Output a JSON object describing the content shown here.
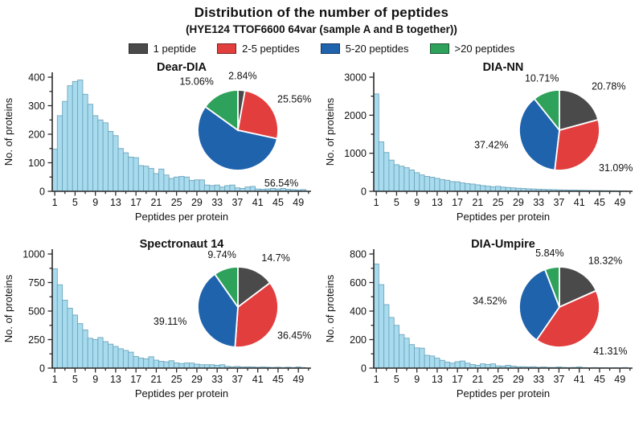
{
  "header": {
    "title": "Distribution of the number of peptides",
    "subtitle": "(HYE124 TTOF6600 64var (sample A and B together))"
  },
  "legend": {
    "position": "top-center",
    "items": [
      {
        "label": "1 peptide",
        "color": "#4a4a4a"
      },
      {
        "label": "2-5 peptides",
        "color": "#e23e3e"
      },
      {
        "label": "5-20 peptides",
        "color": "#2063ad"
      },
      {
        "label": ">20 peptides",
        "color": "#2ea15b"
      }
    ]
  },
  "styles": {
    "bar_fill": "#a8dbee",
    "bar_stroke": "#6fa6bd",
    "axis_color": "#2a2a2a",
    "text_color": "#111111",
    "pie_border": "#ffffff"
  },
  "chart_data": [
    {
      "type": "bar",
      "title": "Dear-DIA",
      "xlabel": "Peptides per protein",
      "ylabel": "No. of proteins",
      "x_range": [
        1,
        50
      ],
      "values": [
        148,
        265,
        315,
        370,
        385,
        390,
        340,
        305,
        265,
        250,
        240,
        210,
        195,
        150,
        135,
        120,
        118,
        90,
        88,
        80,
        62,
        78,
        57,
        45,
        50,
        52,
        50,
        38,
        40,
        40,
        22,
        20,
        22,
        15,
        20,
        22,
        12,
        10,
        15,
        17,
        8,
        7,
        8,
        10,
        8,
        10,
        7,
        6,
        5,
        6
      ],
      "ylim": [
        0,
        400
      ],
      "yticks": [
        0,
        100,
        200,
        300,
        400
      ],
      "y_minor_step": 50,
      "xticks": [
        1,
        5,
        9,
        13,
        17,
        21,
        25,
        29,
        33,
        37,
        41,
        45,
        49
      ],
      "grid": false,
      "pie": {
        "type": "pie",
        "start": "top",
        "clockwise": true,
        "slices": [
          {
            "label": "1 peptide",
            "value": 2.84,
            "text": "2.84%",
            "color": "#4a4a4a"
          },
          {
            "label": "2-5 peptides",
            "value": 25.56,
            "text": "25.56%",
            "color": "#e23e3e"
          },
          {
            "label": "5-20 peptides",
            "value": 56.54,
            "text": "56.54%",
            "color": "#2063ad",
            "label_angle": 152,
            "label_dist": 70
          },
          {
            "label": ">20 peptides",
            "value": 15.06,
            "text": "15.06%",
            "color": "#2ea15b"
          }
        ]
      }
    },
    {
      "type": "bar",
      "title": "DIA-NN",
      "xlabel": "Peptides per protein",
      "ylabel": "No. of proteins",
      "x_range": [
        1,
        50
      ],
      "values": [
        2560,
        1300,
        1020,
        820,
        700,
        660,
        620,
        560,
        490,
        430,
        390,
        370,
        340,
        310,
        290,
        255,
        250,
        220,
        200,
        190,
        170,
        150,
        135,
        120,
        130,
        110,
        100,
        90,
        80,
        72,
        65,
        60,
        55,
        50,
        46,
        42,
        38,
        35,
        32,
        30,
        27,
        25,
        22,
        20,
        20,
        17,
        15,
        14,
        12,
        10
      ],
      "ylim": [
        0,
        3000
      ],
      "yticks": [
        0,
        1000,
        2000,
        3000
      ],
      "y_minor_step": 500,
      "xticks": [
        1,
        5,
        9,
        13,
        17,
        21,
        25,
        29,
        33,
        37,
        41,
        45,
        49
      ],
      "grid": false,
      "pie": {
        "type": "pie",
        "start": "top",
        "clockwise": true,
        "slices": [
          {
            "label": "1 peptide",
            "value": 20.78,
            "text": "20.78%",
            "color": "#4a4a4a"
          },
          {
            "label": "2-5 peptides",
            "value": 31.09,
            "text": "31.09%",
            "color": "#e23e3e"
          },
          {
            "label": "5-20 peptides",
            "value": 37.42,
            "text": "37.42%",
            "color": "#2063ad"
          },
          {
            "label": ">20 peptides",
            "value": 10.71,
            "text": "10.71%",
            "color": "#2ea15b"
          }
        ]
      }
    },
    {
      "type": "bar",
      "title": "Spectronaut 14",
      "xlabel": "Peptides per protein",
      "ylabel": "No. of proteins",
      "x_range": [
        1,
        50
      ],
      "values": [
        870,
        730,
        595,
        525,
        465,
        390,
        335,
        262,
        250,
        268,
        232,
        210,
        190,
        170,
        155,
        140,
        102,
        88,
        82,
        100,
        70,
        60,
        55,
        65,
        46,
        40,
        45,
        44,
        35,
        30,
        30,
        30,
        25,
        30,
        16,
        12,
        15,
        10,
        12,
        10,
        8,
        10,
        8,
        6,
        8,
        5,
        8,
        5,
        10,
        5
      ],
      "ylim": [
        0,
        1000
      ],
      "yticks": [
        0,
        250,
        500,
        750,
        1000
      ],
      "y_minor_step": 125,
      "xticks": [
        1,
        5,
        9,
        13,
        17,
        21,
        25,
        29,
        33,
        37,
        41,
        45,
        49
      ],
      "grid": false,
      "pie": {
        "type": "pie",
        "start": "top",
        "clockwise": true,
        "slices": [
          {
            "label": "1 peptide",
            "value": 14.7,
            "text": "14.7%",
            "color": "#4a4a4a"
          },
          {
            "label": "2-5 peptides",
            "value": 36.45,
            "text": "36.45%",
            "color": "#e23e3e"
          },
          {
            "label": "5-20 peptides",
            "value": 39.11,
            "text": "39.11%",
            "color": "#2063ad"
          },
          {
            "label": ">20 peptides",
            "value": 9.74,
            "text": "9.74%",
            "color": "#2ea15b"
          }
        ]
      }
    },
    {
      "type": "bar",
      "title": "DIA-Umpire",
      "xlabel": "Peptides per protein",
      "ylabel": "No. of proteins",
      "x_range": [
        1,
        50
      ],
      "values": [
        730,
        585,
        445,
        355,
        300,
        235,
        210,
        165,
        142,
        140,
        90,
        85,
        70,
        55,
        42,
        35,
        45,
        50,
        35,
        25,
        20,
        30,
        25,
        30,
        16,
        14,
        20,
        14,
        10,
        10,
        8,
        10,
        6,
        8,
        5,
        5,
        8,
        5,
        4,
        5,
        8,
        4,
        3,
        4,
        3,
        3,
        2,
        3,
        2,
        4
      ],
      "ylim": [
        0,
        800
      ],
      "yticks": [
        0,
        200,
        400,
        600,
        800
      ],
      "y_minor_step": 100,
      "xticks": [
        1,
        5,
        9,
        13,
        17,
        21,
        25,
        29,
        33,
        37,
        41,
        45,
        49
      ],
      "grid": false,
      "pie": {
        "type": "pie",
        "start": "top",
        "clockwise": true,
        "slices": [
          {
            "label": "1 peptide",
            "value": 18.32,
            "text": "18.32%",
            "color": "#4a4a4a"
          },
          {
            "label": "2-5 peptides",
            "value": 41.31,
            "text": "41.31%",
            "color": "#e23e3e"
          },
          {
            "label": "5-20 peptides",
            "value": 34.52,
            "text": "34.52%",
            "color": "#2063ad"
          },
          {
            "label": ">20 peptides",
            "value": 5.84,
            "text": "5.84%",
            "color": "#2ea15b"
          }
        ]
      }
    }
  ]
}
